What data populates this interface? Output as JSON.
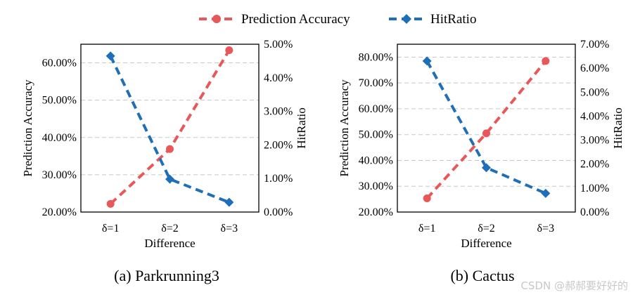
{
  "legend": [
    {
      "label": "Prediction  Accuracy",
      "color": "#e8585a",
      "marker": "circle"
    },
    {
      "label": "HitRatio",
      "color": "#1f6fb8",
      "marker": "diamond"
    }
  ],
  "watermark": "CSDN @郝郝要好好的",
  "chart_data": [
    {
      "type": "line",
      "caption": "(a)  Parkrunning3",
      "xlabel": "Difference",
      "ylabel": "Prediction  Accuracy",
      "y2label": "HitRatio",
      "categories": [
        "δ=1",
        "δ=2",
        "δ=3"
      ],
      "ylim": [
        20,
        65
      ],
      "y2lim": [
        0,
        5
      ],
      "yticks": [
        20,
        30,
        40,
        50,
        60
      ],
      "y2ticks": [
        0,
        1,
        2,
        3,
        4,
        5
      ],
      "ytick_labels": [
        "20.00%",
        "30.00%",
        "40.00%",
        "50.00%",
        "60.00%"
      ],
      "y2tick_labels": [
        "0.00%",
        "1.00%",
        "2.00%",
        "3.00%",
        "4.00%",
        "5.00%"
      ],
      "grid": true,
      "series": [
        {
          "name": "Prediction  Accuracy",
          "axis": "left",
          "values": [
            22.2,
            36.9,
            63.4
          ]
        },
        {
          "name": "HitRatio",
          "axis": "right",
          "values": [
            4.65,
            0.98,
            0.29
          ]
        }
      ]
    },
    {
      "type": "line",
      "caption": "(b)  Cactus",
      "xlabel": "Difference",
      "ylabel": "Prediction  Accuracy",
      "y2label": "HitRatio",
      "categories": [
        "δ=1",
        "δ=2",
        "δ=3"
      ],
      "ylim": [
        20,
        85
      ],
      "y2lim": [
        0,
        7
      ],
      "yticks": [
        20,
        30,
        40,
        50,
        60,
        70,
        80
      ],
      "y2ticks": [
        0,
        1,
        2,
        3,
        4,
        5,
        6,
        7
      ],
      "ytick_labels": [
        "20.00%",
        "30.00%",
        "40.00%",
        "50.00%",
        "60.00%",
        "70.00%",
        "80.00%"
      ],
      "y2tick_labels": [
        "0.00%",
        "1.00%",
        "2.00%",
        "3.00%",
        "4.00%",
        "5.00%",
        "6.00%",
        "7.00%"
      ],
      "grid": true,
      "series": [
        {
          "name": "Prediction  Accuracy",
          "axis": "left",
          "values": [
            25.3,
            50.5,
            78.5
          ]
        },
        {
          "name": "HitRatio",
          "axis": "right",
          "values": [
            6.3,
            1.85,
            0.78
          ]
        }
      ]
    }
  ]
}
